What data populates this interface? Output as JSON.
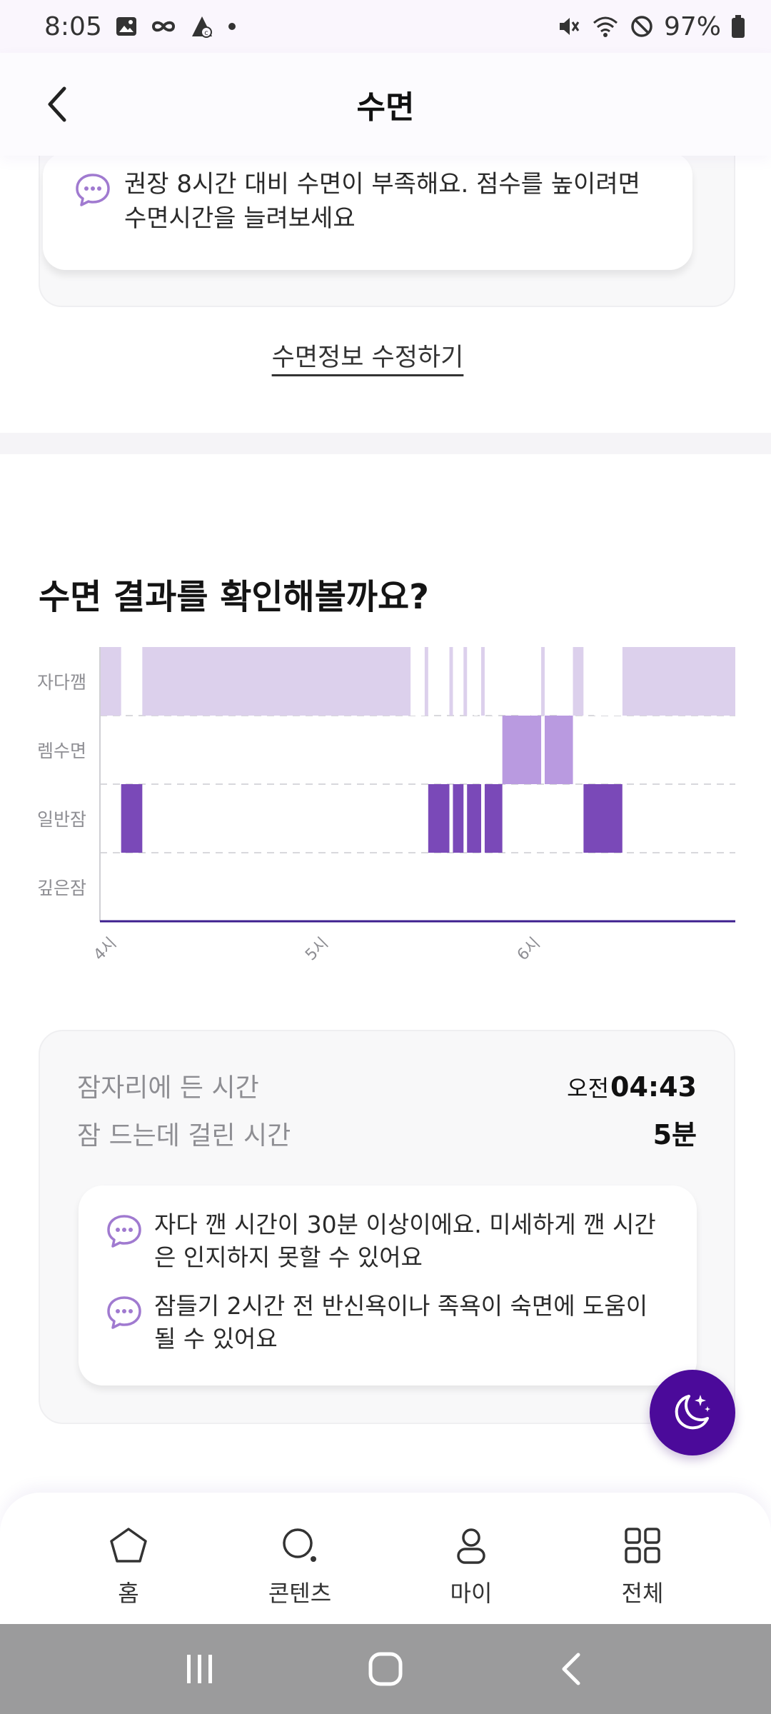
{
  "status_bar": {
    "time": "8:05",
    "battery": "97%"
  },
  "header": {
    "title": "수면"
  },
  "top_tip": {
    "text": "권장 8시간 대비 수면이 부족해요. 점수를 높이려면 수면시간을 늘려보세요"
  },
  "edit_link": "수면정보 수정하기",
  "section_title": "수면 결과를 확인해볼까요?",
  "chart_data": {
    "type": "timeline",
    "title": "",
    "y_categories": [
      "자다깸",
      "렘수면",
      "일반잠",
      "깊은잠"
    ],
    "x_ticks": [
      "4시",
      "5시",
      "6시"
    ],
    "x_range": [
      "04:00",
      "07:00"
    ],
    "colors": {
      "자다깸": "#dcd0ec",
      "렘수면": "#b99ae0",
      "일반잠": "#7a49b8",
      "깊은잠": "#3d1f8f"
    },
    "segments": [
      {
        "stage": "자다깸",
        "start": "04:00",
        "end": "04:06"
      },
      {
        "stage": "일반잠",
        "start": "04:06",
        "end": "04:12"
      },
      {
        "stage": "자다깸",
        "start": "04:12",
        "end": "05:33"
      },
      {
        "stage": "일반잠",
        "start": "05:33",
        "end": "05:39"
      },
      {
        "stage": "자다깸",
        "start": "05:39",
        "end": "05:40"
      },
      {
        "stage": "일반잠",
        "start": "05:40",
        "end": "05:43"
      },
      {
        "stage": "자다깸",
        "start": "05:43",
        "end": "05:44"
      },
      {
        "stage": "일반잠",
        "start": "05:44",
        "end": "05:48"
      },
      {
        "stage": "자다깸",
        "start": "05:48",
        "end": "05:49"
      },
      {
        "stage": "일반잠",
        "start": "05:49",
        "end": "05:54"
      },
      {
        "stage": "렘수면",
        "start": "05:54",
        "end": "06:05"
      },
      {
        "stage": "자다깸",
        "start": "06:05",
        "end": "06:06"
      },
      {
        "stage": "렘수면",
        "start": "06:06",
        "end": "06:14"
      },
      {
        "stage": "자다깸",
        "start": "06:14",
        "end": "06:17"
      },
      {
        "stage": "일반잠",
        "start": "06:17",
        "end": "06:28"
      },
      {
        "stage": "자다깸",
        "start": "06:28",
        "end": "07:00"
      }
    ],
    "awake_gaps": [
      {
        "start": "05:28",
        "end": "05:32"
      },
      {
        "start": "05:46",
        "end": "05:47"
      },
      {
        "start": "05:51",
        "end": "05:52"
      },
      {
        "start": "05:55",
        "end": "05:56"
      },
      {
        "start": "05:59",
        "end": "06:02"
      },
      {
        "start": "06:03",
        "end": "06:04"
      },
      {
        "start": "06:11",
        "end": "06:13"
      },
      {
        "start": "06:17",
        "end": "06:18"
      },
      {
        "start": "06:20",
        "end": "06:21"
      },
      {
        "start": "06:22",
        "end": "06:28"
      }
    ]
  },
  "info": {
    "bedtime_label": "잠자리에 든 시간",
    "bedtime_ampm": "오전",
    "bedtime_value": "04:43",
    "latency_label": "잠 드는데 걸린 시간",
    "latency_value": "5분"
  },
  "advice": [
    "자다 깬 시간이 30분 이상이에요. 미세하게 깬 시간은 인지하지 못할 수 있어요",
    "잠들기 2시간 전 반신욕이나 족욕이 숙면에 도움이 될 수 있어요"
  ],
  "bottom_nav": {
    "items": [
      {
        "label": "홈",
        "icon": "home-icon"
      },
      {
        "label": "콘텐츠",
        "icon": "search-icon"
      },
      {
        "label": "마이",
        "icon": "person-icon"
      },
      {
        "label": "전체",
        "icon": "grid-icon"
      }
    ]
  },
  "fab": {
    "icon": "moon-stars-icon",
    "color": "#4b0a9a"
  }
}
